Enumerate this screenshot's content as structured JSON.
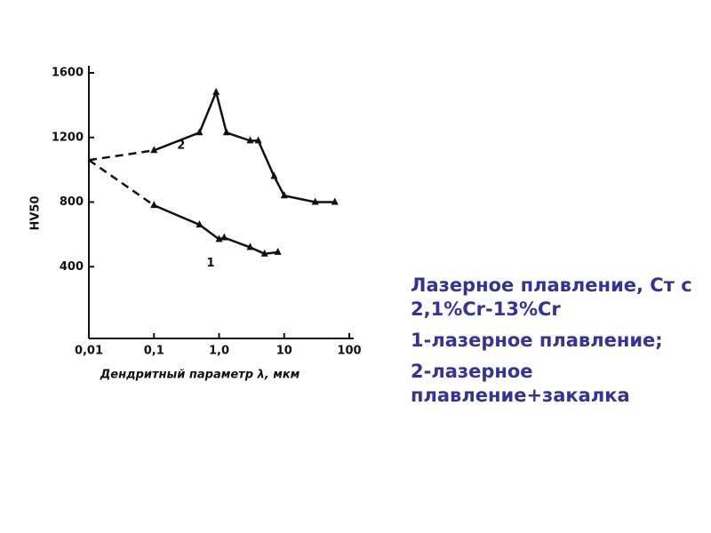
{
  "chart_data": {
    "type": "line",
    "y_label": "HV50",
    "x_label": "Дендритный параметр λ, мкм",
    "x_log": true,
    "xlim": [
      0.01,
      100
    ],
    "xticks": [
      {
        "value": 0.01,
        "label": "0,01"
      },
      {
        "value": 0.1,
        "label": "0,1"
      },
      {
        "value": 1,
        "label": "1,0"
      },
      10,
      100
    ],
    "ylim": [
      0,
      1600
    ],
    "yticks": [
      400,
      800,
      1200,
      1600
    ],
    "color": "#111111",
    "series": [
      {
        "label": "1",
        "x": [
          0.01,
          0.1,
          0.5,
          1.0,
          1.2,
          3,
          5,
          8
        ],
        "values": [
          1060,
          780,
          660,
          570,
          580,
          520,
          480,
          490
        ]
      },
      {
        "label": "2",
        "x": [
          0.01,
          0.1,
          0.5,
          0.9,
          1.3,
          3,
          4,
          7,
          10,
          30,
          60
        ],
        "values": [
          1060,
          1120,
          1230,
          1480,
          1230,
          1180,
          1180,
          960,
          840,
          800,
          800
        ]
      }
    ]
  },
  "text": {
    "paragraphs": [
      "Лазерное плавление, Ст с 2,1%Cr-13%Cr",
      "1-лазерное плавление;",
      "2-лазерное плавление+закалка"
    ]
  }
}
